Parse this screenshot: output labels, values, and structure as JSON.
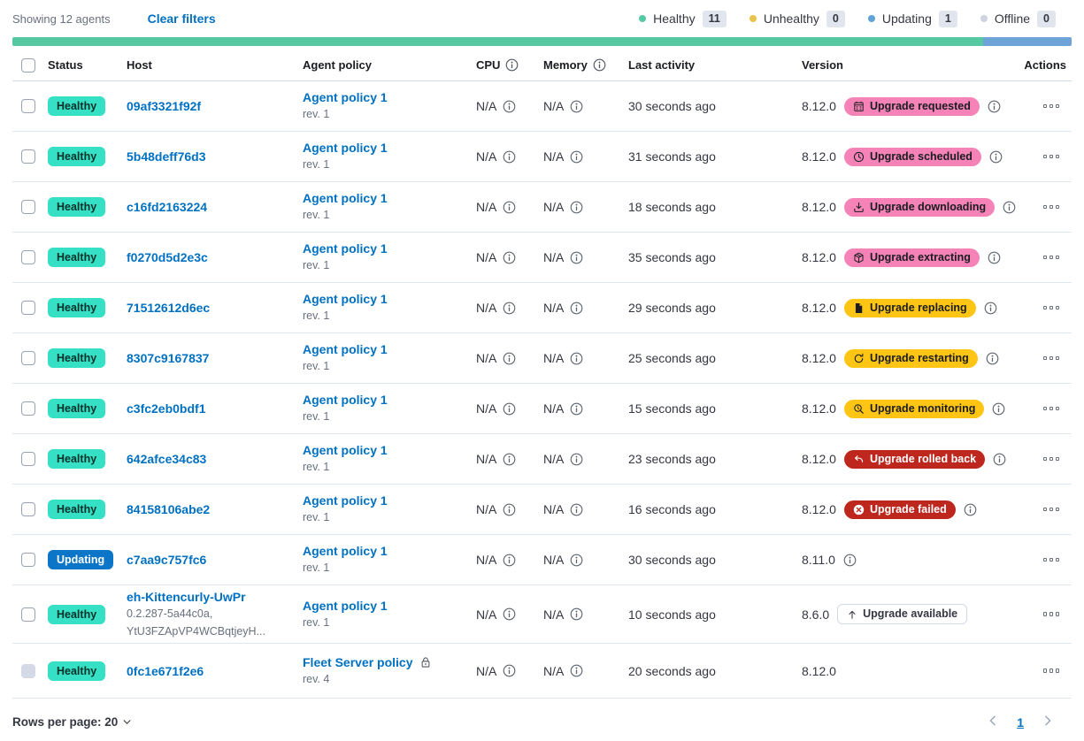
{
  "toolbar": {
    "showing_text": "Showing 12 agents",
    "clear_filters_label": "Clear filters",
    "legend": [
      {
        "label": "Healthy",
        "count": "11",
        "color": "#57c9a2"
      },
      {
        "label": "Unhealthy",
        "count": "0",
        "color": "#e7c34b"
      },
      {
        "label": "Updating",
        "count": "1",
        "color": "#61a2d8"
      },
      {
        "label": "Offline",
        "count": "0",
        "color": "#cdd3df"
      }
    ]
  },
  "health_bar": {
    "segments": [
      {
        "status": "healthy",
        "color": "#57c9a2",
        "weight": 11
      },
      {
        "status": "updating",
        "color": "#6ea3d8",
        "weight": 1
      }
    ]
  },
  "colors": {
    "success_teal": "#35e0c4",
    "primary_blue": "#0b75c8",
    "accent_pink": "#f583b7",
    "warning_yellow": "#fec514",
    "danger_red": "#bd271e",
    "link_blue": "#0071c2"
  },
  "table": {
    "headers": [
      {
        "label": "Status"
      },
      {
        "label": "Host"
      },
      {
        "label": "Agent policy"
      },
      {
        "label": "CPU",
        "info": true
      },
      {
        "label": "Memory",
        "info": true
      },
      {
        "label": "Last activity"
      },
      {
        "label": "Version"
      },
      {
        "label": "Actions"
      }
    ],
    "rows": [
      {
        "status": "Healthy",
        "variant": "success",
        "disabled": false,
        "host": "09af3321f92f",
        "host_sub": [],
        "policy": "Agent policy 1",
        "rev": "rev. 1",
        "locked": false,
        "cpu": "N/A",
        "memory": "N/A",
        "last_activity": "30 seconds ago",
        "version": "8.12.0",
        "version_info": false,
        "badge": {
          "label": "Upgrade requested",
          "variant": "pink",
          "icon": "calendar-icon"
        },
        "badge_info": true
      },
      {
        "status": "Healthy",
        "variant": "success",
        "disabled": false,
        "host": "5b48deff76d3",
        "host_sub": [],
        "policy": "Agent policy 1",
        "rev": "rev. 1",
        "locked": false,
        "cpu": "N/A",
        "memory": "N/A",
        "last_activity": "31 seconds ago",
        "version": "8.12.0",
        "version_info": false,
        "badge": {
          "label": "Upgrade scheduled",
          "variant": "pink",
          "icon": "clock-icon"
        },
        "badge_info": true
      },
      {
        "status": "Healthy",
        "variant": "success",
        "disabled": false,
        "host": "c16fd2163224",
        "host_sub": [],
        "policy": "Agent policy 1",
        "rev": "rev. 1",
        "locked": false,
        "cpu": "N/A",
        "memory": "N/A",
        "last_activity": "18 seconds ago",
        "version": "8.12.0",
        "version_info": false,
        "badge": {
          "label": "Upgrade downloading",
          "variant": "pink",
          "icon": "download-icon"
        },
        "badge_info": true
      },
      {
        "status": "Healthy",
        "variant": "success",
        "disabled": false,
        "host": "f0270d5d2e3c",
        "host_sub": [],
        "policy": "Agent policy 1",
        "rev": "rev. 1",
        "locked": false,
        "cpu": "N/A",
        "memory": "N/A",
        "last_activity": "35 seconds ago",
        "version": "8.12.0",
        "version_info": false,
        "badge": {
          "label": "Upgrade extracting",
          "variant": "pink",
          "icon": "package-icon"
        },
        "badge_info": true
      },
      {
        "status": "Healthy",
        "variant": "success",
        "disabled": false,
        "host": "71512612d6ec",
        "host_sub": [],
        "policy": "Agent policy 1",
        "rev": "rev. 1",
        "locked": false,
        "cpu": "N/A",
        "memory": "N/A",
        "last_activity": "29 seconds ago",
        "version": "8.12.0",
        "version_info": false,
        "badge": {
          "label": "Upgrade replacing",
          "variant": "warning",
          "icon": "document-icon"
        },
        "badge_info": true
      },
      {
        "status": "Healthy",
        "variant": "success",
        "disabled": false,
        "host": "8307c9167837",
        "host_sub": [],
        "policy": "Agent policy 1",
        "rev": "rev. 1",
        "locked": false,
        "cpu": "N/A",
        "memory": "N/A",
        "last_activity": "25 seconds ago",
        "version": "8.12.0",
        "version_info": false,
        "badge": {
          "label": "Upgrade restarting",
          "variant": "warning",
          "icon": "refresh-icon"
        },
        "badge_info": true
      },
      {
        "status": "Healthy",
        "variant": "success",
        "disabled": false,
        "host": "c3fc2eb0bdf1",
        "host_sub": [],
        "policy": "Agent policy 1",
        "rev": "rev. 1",
        "locked": false,
        "cpu": "N/A",
        "memory": "N/A",
        "last_activity": "15 seconds ago",
        "version": "8.12.0",
        "version_info": false,
        "badge": {
          "label": "Upgrade monitoring",
          "variant": "warning",
          "icon": "inspect-icon"
        },
        "badge_info": true
      },
      {
        "status": "Healthy",
        "variant": "success",
        "disabled": false,
        "host": "642afce34c83",
        "host_sub": [],
        "policy": "Agent policy 1",
        "rev": "rev. 1",
        "locked": false,
        "cpu": "N/A",
        "memory": "N/A",
        "last_activity": "23 seconds ago",
        "version": "8.12.0",
        "version_info": false,
        "badge": {
          "label": "Upgrade rolled back",
          "variant": "danger",
          "icon": "return-icon"
        },
        "badge_info": true
      },
      {
        "status": "Healthy",
        "variant": "success",
        "disabled": false,
        "host": "84158106abe2",
        "host_sub": [],
        "policy": "Agent policy 1",
        "rev": "rev. 1",
        "locked": false,
        "cpu": "N/A",
        "memory": "N/A",
        "last_activity": "16 seconds ago",
        "version": "8.12.0",
        "version_info": false,
        "badge": {
          "label": "Upgrade failed",
          "variant": "danger",
          "icon": "error-icon"
        },
        "badge_info": true
      },
      {
        "status": "Updating",
        "variant": "primary",
        "disabled": false,
        "host": "c7aa9c757fc6",
        "host_sub": [],
        "policy": "Agent policy 1",
        "rev": "rev. 1",
        "locked": false,
        "cpu": "N/A",
        "memory": "N/A",
        "last_activity": "30 seconds ago",
        "version": "8.11.0",
        "version_info": true,
        "badge": null,
        "badge_info": false
      },
      {
        "status": "Healthy",
        "variant": "success",
        "disabled": false,
        "host": "eh-Kittencurly-UwPr",
        "host_sub": [
          "0.2.287-5a44c0a,",
          "YtU3FZApVP4WCBqtjeyH..."
        ],
        "policy": "Agent policy 1",
        "rev": "rev. 1",
        "locked": false,
        "cpu": "N/A",
        "memory": "N/A",
        "last_activity": "10 seconds ago",
        "version": "8.6.0",
        "version_info": false,
        "badge": {
          "label": "Upgrade available",
          "variant": "hollow",
          "icon": "arrow-up-icon"
        },
        "badge_info": false
      },
      {
        "status": "Healthy",
        "variant": "success",
        "disabled": true,
        "host": "0fc1e671f2e6",
        "host_sub": [],
        "policy": "Fleet Server policy",
        "rev": "rev. 4",
        "locked": true,
        "cpu": "N/A",
        "memory": "N/A",
        "last_activity": "20 seconds ago",
        "version": "8.12.0",
        "version_info": false,
        "badge": null,
        "badge_info": false
      }
    ]
  },
  "footer": {
    "rows_per_page_label": "Rows per page: 20",
    "page": "1"
  }
}
